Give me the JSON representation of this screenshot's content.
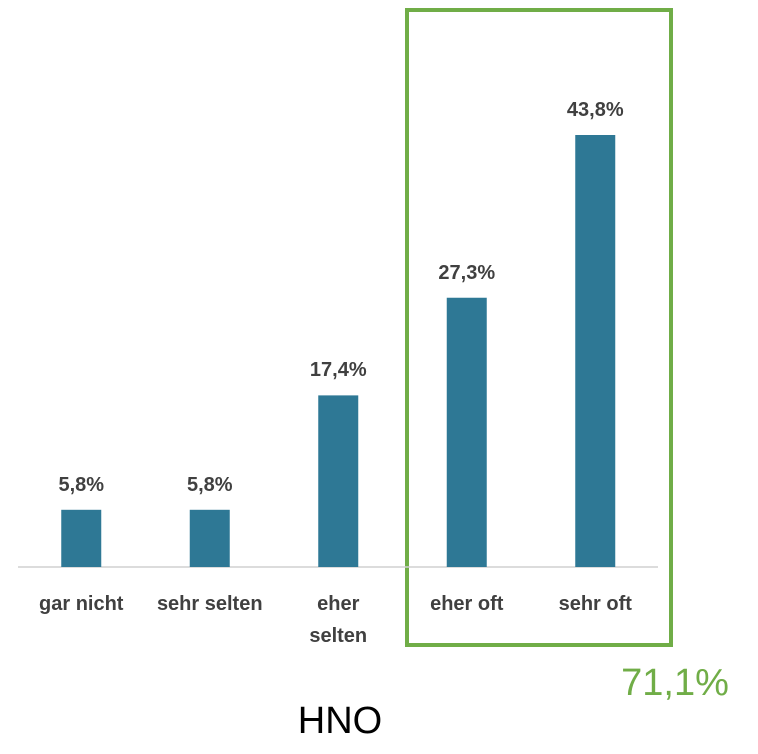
{
  "chart_data": {
    "type": "bar",
    "title": "HNO",
    "annotation": "71,1%",
    "categories": [
      "gar nicht",
      "sehr selten",
      "eher\nselten",
      "eher oft",
      "sehr oft"
    ],
    "values": [
      5.8,
      5.8,
      17.4,
      27.3,
      43.8
    ],
    "value_labels": [
      "5,8%",
      "5,8%",
      "17,4%",
      "27,3%",
      "43,8%"
    ],
    "color": "#2e7895"
  }
}
